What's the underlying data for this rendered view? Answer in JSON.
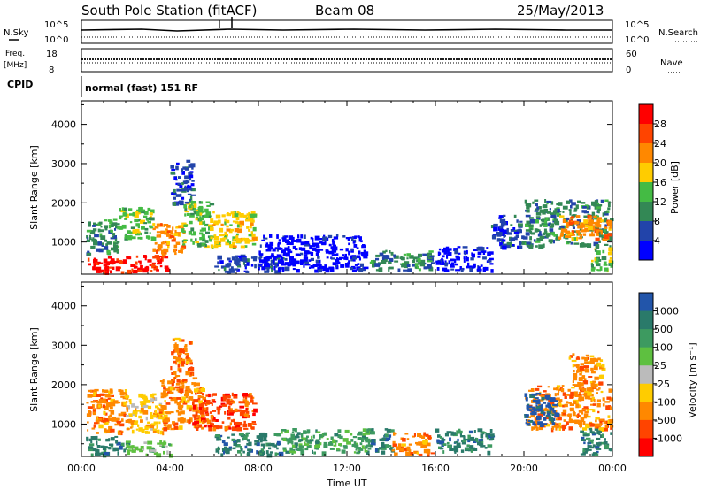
{
  "header": {
    "station": "South Pole Station (fitACF)",
    "beam": "Beam 08",
    "date": "25/May/2013"
  },
  "strip_panels": {
    "noise": {
      "left_label": "N.Sky",
      "left_ticks": [
        "10^5",
        "10^0"
      ],
      "right_label": "N.Search",
      "right_ticks": [
        "10^5",
        "10^0"
      ]
    },
    "frequency": {
      "left_label_line1": "Freq.",
      "left_label_line2": "[MHz]",
      "left_ticks": [
        "18",
        "8"
      ],
      "right_label": "Nave",
      "right_ticks": [
        "60",
        "0"
      ]
    },
    "cpid": {
      "label": "CPID",
      "text": "normal (fast) 151 RF"
    }
  },
  "chart_data": [
    {
      "type": "heatmap",
      "panel": "power",
      "ylabel": "Slant Range [km]",
      "y_ticks": [
        1000,
        2000,
        3000,
        4000
      ],
      "ylim": [
        180,
        4600
      ],
      "xlim_hours": [
        0,
        24
      ],
      "colorbar_label": "Power [dB]",
      "colorbar_ticks": [
        "28",
        "24",
        "20",
        "16",
        "12",
        "8",
        "4"
      ],
      "colors": [
        "#ff0000",
        "#ff4400",
        "#ff8800",
        "#ffcc00",
        "#44bb44",
        "#338855",
        "#2244aa",
        "#0000ff"
      ],
      "blobs": [
        {
          "t0": 0.1,
          "t1": 1.9,
          "r0": 250,
          "r1": 650,
          "c": 0
        },
        {
          "t0": 2.0,
          "t1": 3.8,
          "r0": 250,
          "r1": 700,
          "c": 0
        },
        {
          "t0": 0.2,
          "t1": 1.6,
          "r0": 700,
          "r1": 1600,
          "c": 5
        },
        {
          "t0": 1.6,
          "t1": 3.2,
          "r0": 1100,
          "r1": 1900,
          "c": 4
        },
        {
          "t0": 3.2,
          "t1": 4.6,
          "r0": 700,
          "r1": 1500,
          "c": 2
        },
        {
          "t0": 4.5,
          "t1": 5.8,
          "r0": 900,
          "r1": 2100,
          "c": 4
        },
        {
          "t0": 5.8,
          "t1": 7.8,
          "r0": 900,
          "r1": 1800,
          "c": 3
        },
        {
          "t0": 4.0,
          "t1": 5.0,
          "r0": 2000,
          "r1": 3100,
          "c": 6
        },
        {
          "t0": 6.0,
          "t1": 9.0,
          "r0": 250,
          "r1": 700,
          "c": 6
        },
        {
          "t0": 8.0,
          "t1": 12.8,
          "r0": 300,
          "r1": 1200,
          "c": 7
        },
        {
          "t0": 13.0,
          "t1": 15.8,
          "r0": 300,
          "r1": 800,
          "c": 5
        },
        {
          "t0": 16.0,
          "t1": 18.5,
          "r0": 300,
          "r1": 900,
          "c": 7
        },
        {
          "t0": 18.5,
          "t1": 20.0,
          "r0": 900,
          "r1": 1700,
          "c": 6
        },
        {
          "t0": 20.0,
          "t1": 23.9,
          "r0": 900,
          "r1": 2100,
          "c": 5
        },
        {
          "t0": 21.5,
          "t1": 23.9,
          "r0": 1100,
          "r1": 1700,
          "c": 2
        },
        {
          "t0": 23.0,
          "t1": 23.9,
          "r0": 300,
          "r1": 900,
          "c": 4
        }
      ]
    },
    {
      "type": "heatmap",
      "panel": "velocity",
      "ylabel": "Slant Range [km]",
      "y_ticks": [
        1000,
        2000,
        3000,
        4000
      ],
      "ylim": [
        180,
        4600
      ],
      "xlim_hours": [
        0,
        24
      ],
      "x_ticks": [
        "00:00",
        "04:00",
        "08:00",
        "12:00",
        "16:00",
        "20:00",
        "00:00"
      ],
      "xlabel": "Time UT",
      "colorbar_label": "Velocity [m s⁻¹]",
      "colorbar_ticks": [
        "1000",
        "500",
        "100",
        "25",
        "-25",
        "-100",
        "-500",
        "-1000"
      ],
      "colors": [
        "#2255aa",
        "#2a7a6a",
        "#3d9a60",
        "#5ec040",
        "#bbbbbb",
        "#ffcc00",
        "#ff8800",
        "#ff4400",
        "#ff0000"
      ],
      "blobs": [
        {
          "t0": 0.1,
          "t1": 2.0,
          "r0": 250,
          "r1": 700,
          "c": 1
        },
        {
          "t0": 2.0,
          "t1": 4.0,
          "r0": 250,
          "r1": 600,
          "c": 3
        },
        {
          "t0": 0.2,
          "t1": 2.0,
          "r0": 800,
          "r1": 1900,
          "c": 6
        },
        {
          "t0": 2.0,
          "t1": 3.8,
          "r0": 800,
          "r1": 1800,
          "c": 5
        },
        {
          "t0": 3.5,
          "t1": 5.5,
          "r0": 900,
          "r1": 2200,
          "c": 6
        },
        {
          "t0": 5.0,
          "t1": 7.8,
          "r0": 900,
          "r1": 1800,
          "c": 7
        },
        {
          "t0": 4.0,
          "t1": 5.0,
          "r0": 2200,
          "r1": 3200,
          "c": 6
        },
        {
          "t0": 6.0,
          "t1": 9.0,
          "r0": 250,
          "r1": 800,
          "c": 1
        },
        {
          "t0": 9.0,
          "t1": 13.0,
          "r0": 300,
          "r1": 900,
          "c": 2
        },
        {
          "t0": 13.0,
          "t1": 14.0,
          "r0": 300,
          "r1": 900,
          "c": 1
        },
        {
          "t0": 14.0,
          "t1": 15.8,
          "r0": 250,
          "r1": 800,
          "c": 6
        },
        {
          "t0": 16.0,
          "t1": 18.5,
          "r0": 300,
          "r1": 900,
          "c": 1
        },
        {
          "t0": 20.0,
          "t1": 23.9,
          "r0": 900,
          "r1": 2000,
          "c": 6
        },
        {
          "t0": 20.0,
          "t1": 21.5,
          "r0": 1000,
          "r1": 1800,
          "c": 0
        },
        {
          "t0": 22.0,
          "t1": 23.5,
          "r0": 2000,
          "r1": 2800,
          "c": 6
        },
        {
          "t0": 22.5,
          "t1": 23.9,
          "r0": 250,
          "r1": 900,
          "c": 1
        }
      ]
    }
  ]
}
